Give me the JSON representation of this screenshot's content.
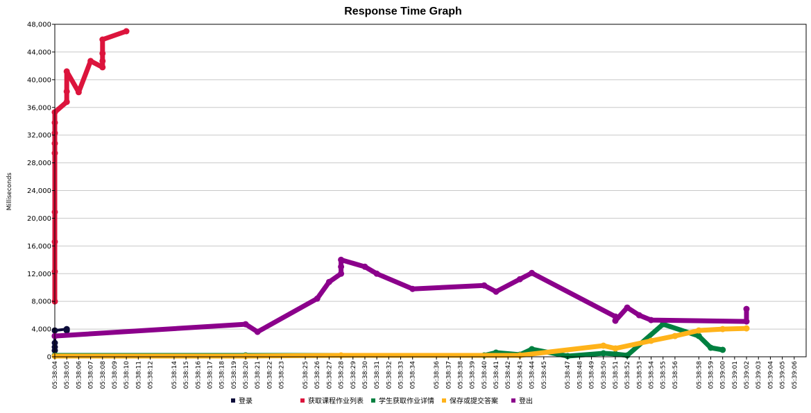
{
  "chart_data": {
    "type": "line",
    "title": "Response Time Graph",
    "xlabel": "",
    "ylabel": "Milliseconds",
    "ylim": [
      0,
      48000
    ],
    "yticks": [
      0,
      4000,
      8000,
      12000,
      16000,
      20000,
      24000,
      28000,
      32000,
      36000,
      40000,
      44000,
      48000
    ],
    "ytick_labels": [
      "0",
      "4,000",
      "8,000",
      "12,000",
      "16,000",
      "20,000",
      "24,000",
      "28,000",
      "32,000",
      "36,000",
      "40,000",
      "44,000",
      "48,000"
    ],
    "xlim": [
      "05:38:04",
      "05:39:07"
    ],
    "categories": [
      "05:38:04",
      "05:38:05",
      "05:38:06",
      "05:38:07",
      "05:38:08",
      "05:38:09",
      "05:38:10",
      "05:38:11",
      "05:38:12",
      "05:38:14",
      "05:38:15",
      "05:38:16",
      "05:38:17",
      "05:38:18",
      "05:38:19",
      "05:38:20",
      "05:38:21",
      "05:38:22",
      "05:38:23",
      "05:38:25",
      "05:38:26",
      "05:38:27",
      "05:38:28",
      "05:38:29",
      "05:38:30",
      "05:38:31",
      "05:38:32",
      "05:38:33",
      "05:38:34",
      "05:38:36",
      "05:38:37",
      "05:38:38",
      "05:38:39",
      "05:38:40",
      "05:38:41",
      "05:38:42",
      "05:38:43",
      "05:38:44",
      "05:38:45",
      "05:38:47",
      "05:38:48",
      "05:38:49",
      "05:38:50",
      "05:38:51",
      "05:38:52",
      "05:38:53",
      "05:38:54",
      "05:38:55",
      "05:38:56",
      "05:38:58",
      "05:38:59",
      "05:39:00",
      "05:39:01",
      "05:39:02",
      "05:39:03",
      "05:39:04",
      "05:39:05",
      "05:39:06"
    ],
    "grid": true,
    "legend_position": "bottom",
    "series": [
      {
        "name": "登录",
        "color": "#0d0d3a",
        "points": [
          [
            "05:38:04",
            900
          ],
          [
            "05:38:04",
            1400
          ],
          [
            "05:38:04",
            2000
          ],
          [
            "05:38:04",
            3000
          ],
          [
            "05:38:04",
            3800
          ],
          [
            "05:38:05",
            4000
          ],
          [
            "05:38:05",
            3800
          ]
        ]
      },
      {
        "name": "获取课程作业列表",
        "color": "#dc143c",
        "points": [
          [
            "05:38:04",
            8000
          ],
          [
            "05:38:04",
            12300
          ],
          [
            "05:38:04",
            16600
          ],
          [
            "05:38:04",
            20900
          ],
          [
            "05:38:04",
            29400
          ],
          [
            "05:38:04",
            30800
          ],
          [
            "05:38:04",
            32300
          ],
          [
            "05:38:04",
            33800
          ],
          [
            "05:38:04",
            35300
          ],
          [
            "05:38:05",
            36800
          ],
          [
            "05:38:05",
            38300
          ],
          [
            "05:38:05",
            41200
          ],
          [
            "05:38:06",
            38200
          ],
          [
            "05:38:07",
            42700
          ],
          [
            "05:38:08",
            41800
          ],
          [
            "05:38:08",
            42700
          ],
          [
            "05:38:08",
            43800
          ],
          [
            "05:38:08",
            45800
          ],
          [
            "05:38:10",
            47000
          ]
        ]
      },
      {
        "name": "学生获取作业详情",
        "color": "#008040",
        "points": [
          [
            "05:38:04",
            200
          ],
          [
            "05:38:20",
            200
          ],
          [
            "05:38:40",
            200
          ],
          [
            "05:38:41",
            600
          ],
          [
            "05:38:43",
            300
          ],
          [
            "05:38:44",
            1100
          ],
          [
            "05:38:47",
            100
          ],
          [
            "05:38:50",
            500
          ],
          [
            "05:38:51",
            400
          ],
          [
            "05:38:52",
            200
          ],
          [
            "05:38:55",
            4700
          ],
          [
            "05:38:58",
            3000
          ],
          [
            "05:38:59",
            1300
          ],
          [
            "05:39:00",
            1000
          ]
        ]
      },
      {
        "name": "保存或提交答案",
        "color": "#ffb31a",
        "points": [
          [
            "05:38:04",
            100
          ],
          [
            "05:38:20",
            100
          ],
          [
            "05:38:28",
            200
          ],
          [
            "05:38:43",
            200
          ],
          [
            "05:38:50",
            1600
          ],
          [
            "05:38:51",
            1200
          ],
          [
            "05:38:54",
            2300
          ],
          [
            "05:38:56",
            3000
          ],
          [
            "05:38:58",
            3800
          ],
          [
            "05:39:00",
            4000
          ],
          [
            "05:39:02",
            4100
          ]
        ]
      },
      {
        "name": "登出",
        "color": "#8b008b",
        "points": [
          [
            "05:38:04",
            3000
          ],
          [
            "05:38:20",
            4700
          ],
          [
            "05:38:21",
            3600
          ],
          [
            "05:38:26",
            8400
          ],
          [
            "05:38:27",
            10800
          ],
          [
            "05:38:28",
            12000
          ],
          [
            "05:38:28",
            13000
          ],
          [
            "05:38:28",
            14000
          ],
          [
            "05:38:30",
            13000
          ],
          [
            "05:38:31",
            12000
          ],
          [
            "05:38:34",
            9800
          ],
          [
            "05:38:40",
            10300
          ],
          [
            "05:38:41",
            9400
          ],
          [
            "05:38:43",
            11200
          ],
          [
            "05:38:44",
            12100
          ],
          [
            "05:38:51",
            5800
          ],
          [
            "05:38:51",
            5200
          ],
          [
            "05:38:52",
            7100
          ],
          [
            "05:38:53",
            6000
          ],
          [
            "05:38:54",
            5300
          ],
          [
            "05:39:02",
            5100
          ],
          [
            "05:39:02",
            6900
          ]
        ]
      }
    ]
  }
}
